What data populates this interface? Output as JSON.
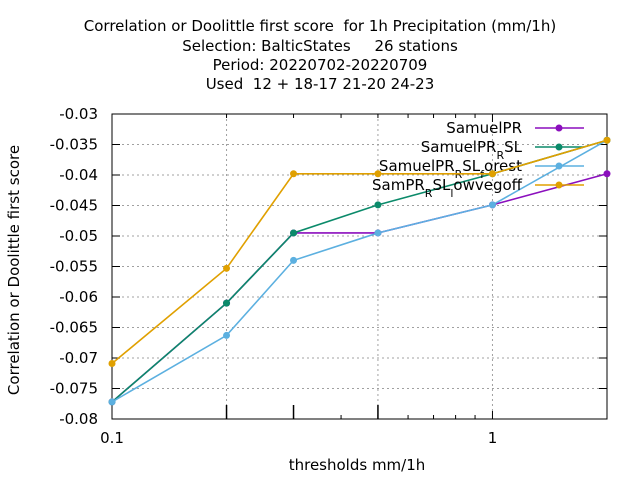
{
  "titles": [
    "Correlation or Doolittle first score  for 1h Precipitation (mm/1h)",
    "Selection: BalticStates     26 stations",
    "Period: 20220702-20220709",
    "Used  12 + 18-17 21-20 24-23"
  ],
  "chart_data": {
    "type": "line",
    "xlabel": "thresholds mm/1h",
    "ylabel": "Correlation or Doolittle first score",
    "x_scale": "log",
    "xlim": [
      0.1,
      2
    ],
    "ylim": [
      -0.08,
      -0.03
    ],
    "x_ticks": [
      {
        "value": 0.1,
        "label": "0.1"
      },
      {
        "value": 1,
        "label": "1"
      }
    ],
    "y_ticks": [
      -0.08,
      -0.075,
      -0.07,
      -0.065,
      -0.06,
      -0.055,
      -0.05,
      -0.045,
      -0.04,
      -0.035,
      -0.03
    ],
    "y_tick_labels": [
      "-0.08",
      "-0.075",
      "-0.07",
      "-0.065",
      "-0.06",
      "-0.055",
      "-0.05",
      "-0.045",
      "-0.04",
      "-0.035",
      "-0.03"
    ],
    "x": [
      0.1,
      0.2,
      0.3,
      0.5,
      1,
      2
    ],
    "grid": true,
    "legend_position": "top-right",
    "series": [
      {
        "name": "SamuelPR",
        "legend_parts": [
          [
            "SamuelPR",
            "n"
          ]
        ],
        "color": "#8b0fbd",
        "values": [
          -0.0772,
          -0.061,
          -0.0495,
          -0.0495,
          -0.0449,
          -0.0398
        ]
      },
      {
        "name": "SamuelPR_R SL",
        "legend_parts": [
          [
            "SamuelPR",
            "n"
          ],
          [
            "R",
            "sub"
          ],
          [
            "SL",
            "n"
          ]
        ],
        "color": "#0b8a6a",
        "values": [
          -0.0772,
          -0.061,
          -0.0495,
          -0.0449,
          -0.0398,
          -0.0343
        ]
      },
      {
        "name": "SamuelPR_R SL_f orest",
        "legend_parts": [
          [
            "SamuelPR",
            "n"
          ],
          [
            "R",
            "sub"
          ],
          [
            "SL",
            "n"
          ],
          [
            "f",
            "sub"
          ],
          [
            "orest",
            "n"
          ]
        ],
        "color": "#5cb0e0",
        "values": [
          -0.0772,
          -0.0663,
          -0.054,
          -0.0495,
          -0.0449,
          -0.0343
        ]
      },
      {
        "name": "SamPR_R SL_l owvegoff",
        "legend_parts": [
          [
            "SamPR",
            "n"
          ],
          [
            "R",
            "sub"
          ],
          [
            "SL",
            "n"
          ],
          [
            "l",
            "sub"
          ],
          [
            "owvegoff",
            "n"
          ]
        ],
        "color": "#e0a000",
        "values": [
          -0.0709,
          -0.0553,
          -0.0398,
          -0.0398,
          -0.0398,
          -0.0343
        ]
      }
    ]
  }
}
